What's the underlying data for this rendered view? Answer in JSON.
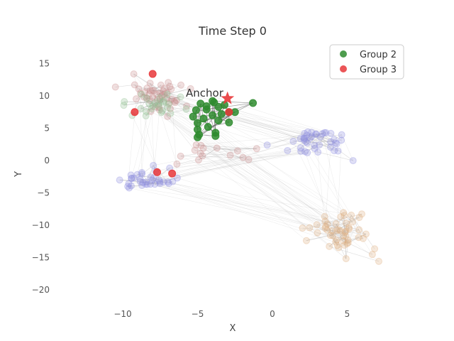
{
  "chart_data": {
    "type": "scatter",
    "title": "Time Step 0",
    "xlabel": "X",
    "ylabel": "Y",
    "xlim": [
      -14.5,
      9.2
    ],
    "ylim": [
      -22.3,
      18.8
    ],
    "xticks": [
      -10,
      -5,
      0,
      5
    ],
    "yticks": [
      15,
      10,
      5,
      0,
      -5,
      -10,
      -15,
      -20
    ],
    "grid": false,
    "legend": {
      "placement": "top-right",
      "entries": [
        {
          "label": "Group 2",
          "color": "#2e8b2e"
        },
        {
          "label": "Group 3",
          "color": "#e8373a"
        }
      ]
    },
    "annotation": {
      "text": "Anchor",
      "x": -4.9,
      "y": 10.5
    },
    "anchor": {
      "x": -3.0,
      "y": 9.6,
      "marker": "star",
      "color": "#e8373a"
    },
    "series": [
      {
        "name": "Group 2",
        "color": "#2e8b2e",
        "points": [
          [
            -5.1,
            7.8
          ],
          [
            -4.4,
            7.9
          ],
          [
            -4.8,
            8.8
          ],
          [
            -3.9,
            9.0
          ],
          [
            -3.6,
            8.3
          ],
          [
            -2.9,
            7.5
          ],
          [
            -3.4,
            7.2
          ],
          [
            -4.0,
            7.0
          ],
          [
            -5.3,
            6.8
          ],
          [
            -4.6,
            6.5
          ],
          [
            -3.6,
            6.2
          ],
          [
            -2.9,
            5.9
          ],
          [
            -5.0,
            5.8
          ],
          [
            -4.3,
            5.2
          ],
          [
            -5.0,
            4.8
          ],
          [
            -3.8,
            4.3
          ],
          [
            -3.8,
            3.8
          ],
          [
            -4.9,
            4.0
          ],
          [
            -5.0,
            3.6
          ],
          [
            -2.5,
            7.5
          ],
          [
            -1.3,
            8.9
          ],
          [
            -4.0,
            9.2
          ],
          [
            -3.2,
            8.6
          ],
          [
            -4.4,
            8.4
          ]
        ]
      },
      {
        "name": "Group 3",
        "color": "#e8373a",
        "points": [
          [
            -8.0,
            13.4
          ],
          [
            -9.2,
            7.5
          ],
          [
            -7.7,
            -1.8
          ],
          [
            -6.7,
            -2.0
          ],
          [
            -2.9,
            7.5
          ]
        ]
      }
    ],
    "background_groups": [
      {
        "name": "pink-green cluster (faded)",
        "center": [
          -8.0,
          9.5
        ],
        "color": "#c98b8b"
      },
      {
        "name": "blue cluster left (faded)",
        "center": [
          -8.5,
          -3.0
        ],
        "color": "#8c8ce0"
      },
      {
        "name": "blue cluster right (faded)",
        "center": [
          3.5,
          2.0
        ],
        "color": "#8c8ce0"
      },
      {
        "name": "orange cluster (faded)",
        "center": [
          4.5,
          -11.0
        ],
        "color": "#e0b080"
      }
    ]
  }
}
